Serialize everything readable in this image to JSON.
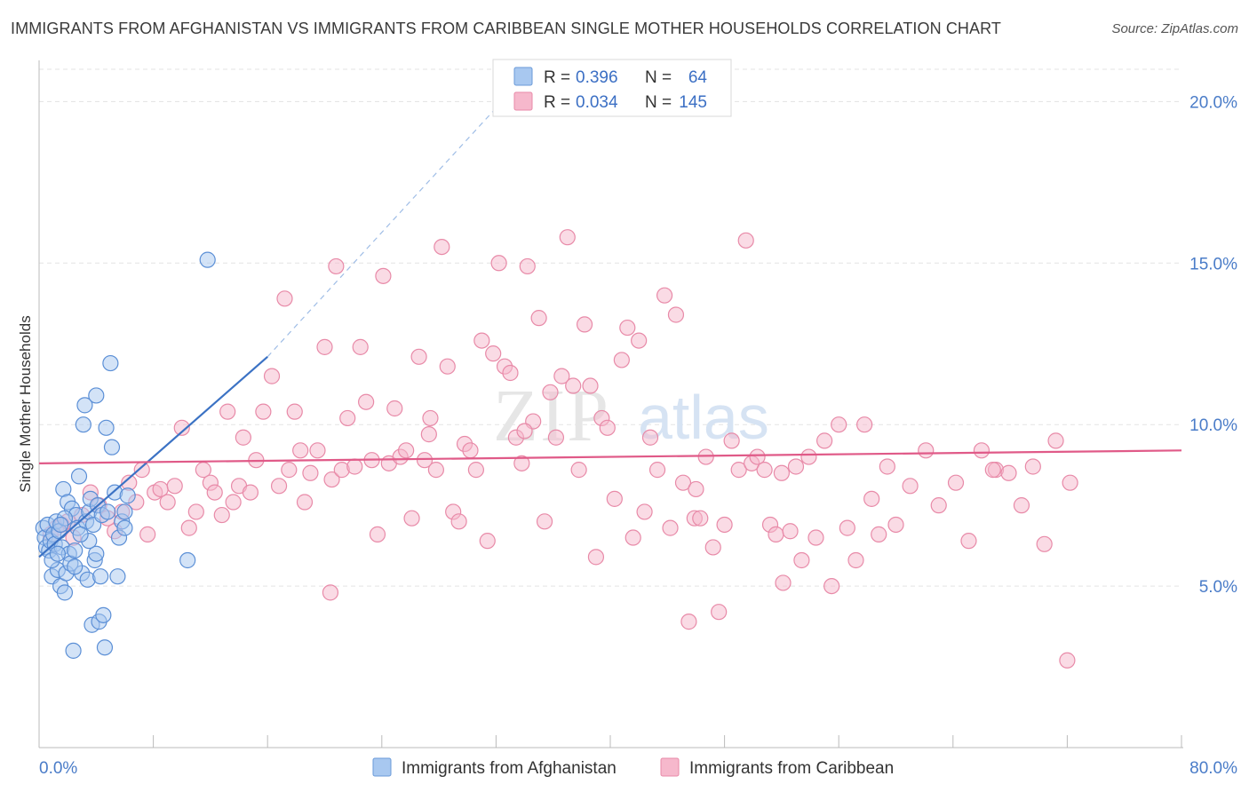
{
  "title": "IMMIGRANTS FROM AFGHANISTAN VS IMMIGRANTS FROM CARIBBEAN SINGLE MOTHER HOUSEHOLDS CORRELATION CHART",
  "source": "Source: ZipAtlas.com",
  "watermark": "ZIPatlas",
  "chart_data": {
    "type": "scatter",
    "ylabel": "Single Mother Households",
    "xlim": [
      0,
      80
    ],
    "ylim": [
      0,
      21
    ],
    "x_tick_labels": [
      {
        "value": 0,
        "label": "0.0%"
      },
      {
        "value": 80,
        "label": "80.0%"
      }
    ],
    "y_tick_labels": [
      {
        "value": 5,
        "label": "5.0%"
      },
      {
        "value": 10,
        "label": "10.0%"
      },
      {
        "value": 15,
        "label": "15.0%"
      },
      {
        "value": 20,
        "label": "20.0%"
      }
    ],
    "legend": [
      {
        "r_label": "R =",
        "r_value": "0.396",
        "n_label": "N =",
        "n_value": "64",
        "color": "#a8c8f0",
        "stroke": "#6a9ad8"
      },
      {
        "r_label": "R =",
        "r_value": "0.034",
        "n_label": "N =",
        "n_value": "145",
        "color": "#f6b8cc",
        "stroke": "#e88aa8"
      }
    ],
    "series": [
      {
        "name": "Immigrants from Afghanistan",
        "color": "#a8c8f0",
        "stroke": "#5b8fd6",
        "trend": {
          "x0": 0,
          "y0": 5.9,
          "x1": 16,
          "y1": 12.1,
          "dash_to_x": 32,
          "dash_to_y": 19.8,
          "color": "#3b72c4"
        },
        "points": [
          [
            0.3,
            6.8
          ],
          [
            0.4,
            6.5
          ],
          [
            0.5,
            6.2
          ],
          [
            0.6,
            6.9
          ],
          [
            0.7,
            6.1
          ],
          [
            0.8,
            6.4
          ],
          [
            0.9,
            5.3
          ],
          [
            1.0,
            6.6
          ],
          [
            1.1,
            6.3
          ],
          [
            1.2,
            7.0
          ],
          [
            1.3,
            5.5
          ],
          [
            1.4,
            6.7
          ],
          [
            1.5,
            5.0
          ],
          [
            1.6,
            6.2
          ],
          [
            1.7,
            8.0
          ],
          [
            1.8,
            4.8
          ],
          [
            1.9,
            5.4
          ],
          [
            2.0,
            7.6
          ],
          [
            2.1,
            6.0
          ],
          [
            2.2,
            5.7
          ],
          [
            2.3,
            7.4
          ],
          [
            2.4,
            3.0
          ],
          [
            2.5,
            6.1
          ],
          [
            2.6,
            7.2
          ],
          [
            2.7,
            6.8
          ],
          [
            2.8,
            8.4
          ],
          [
            3.0,
            5.4
          ],
          [
            3.1,
            10.0
          ],
          [
            3.2,
            10.6
          ],
          [
            3.3,
            7.0
          ],
          [
            3.4,
            5.2
          ],
          [
            3.5,
            7.3
          ],
          [
            3.6,
            7.7
          ],
          [
            3.7,
            3.8
          ],
          [
            3.8,
            6.9
          ],
          [
            3.9,
            5.8
          ],
          [
            4.0,
            10.9
          ],
          [
            4.1,
            7.5
          ],
          [
            4.2,
            3.9
          ],
          [
            4.3,
            5.3
          ],
          [
            4.4,
            7.2
          ],
          [
            4.5,
            4.1
          ],
          [
            4.6,
            3.1
          ],
          [
            4.7,
            9.9
          ],
          [
            4.8,
            7.3
          ],
          [
            5.0,
            11.9
          ],
          [
            5.1,
            9.3
          ],
          [
            5.3,
            7.9
          ],
          [
            5.5,
            5.3
          ],
          [
            5.6,
            6.5
          ],
          [
            5.8,
            7.0
          ],
          [
            6.0,
            7.3
          ],
          [
            6.2,
            7.8
          ],
          [
            6.0,
            6.8
          ],
          [
            4.0,
            6.0
          ],
          [
            3.5,
            6.4
          ],
          [
            2.9,
            6.6
          ],
          [
            2.5,
            5.6
          ],
          [
            1.8,
            7.1
          ],
          [
            1.5,
            6.9
          ],
          [
            10.4,
            5.8
          ],
          [
            11.8,
            15.1
          ],
          [
            0.9,
            5.8
          ],
          [
            1.3,
            6.0
          ]
        ]
      },
      {
        "name": "Immigrants from Caribbean",
        "color": "#f6b8cc",
        "stroke": "#e88aa8",
        "trend": {
          "x0": 0,
          "y0": 8.8,
          "x1": 80,
          "y1": 9.2,
          "color": "#e05a88"
        },
        "points": [
          [
            0.8,
            6.6
          ],
          [
            1.2,
            6.8
          ],
          [
            1.6,
            6.9
          ],
          [
            2.0,
            7.0
          ],
          [
            2.4,
            6.5
          ],
          [
            3.0,
            7.2
          ],
          [
            3.6,
            7.9
          ],
          [
            4.2,
            7.5
          ],
          [
            4.8,
            7.1
          ],
          [
            5.3,
            6.7
          ],
          [
            5.8,
            7.3
          ],
          [
            6.3,
            8.2
          ],
          [
            6.8,
            7.6
          ],
          [
            7.2,
            8.6
          ],
          [
            7.6,
            6.6
          ],
          [
            8.1,
            7.9
          ],
          [
            8.5,
            8.0
          ],
          [
            9.0,
            7.6
          ],
          [
            9.5,
            8.1
          ],
          [
            10.0,
            9.9
          ],
          [
            10.5,
            6.8
          ],
          [
            11.0,
            7.3
          ],
          [
            11.5,
            8.6
          ],
          [
            12.0,
            8.2
          ],
          [
            12.3,
            7.9
          ],
          [
            12.8,
            7.2
          ],
          [
            13.2,
            10.4
          ],
          [
            13.6,
            7.6
          ],
          [
            14.0,
            8.1
          ],
          [
            14.3,
            9.6
          ],
          [
            14.8,
            7.9
          ],
          [
            15.2,
            8.9
          ],
          [
            15.7,
            10.4
          ],
          [
            16.3,
            11.5
          ],
          [
            16.8,
            8.1
          ],
          [
            17.2,
            13.9
          ],
          [
            17.5,
            8.6
          ],
          [
            17.9,
            10.4
          ],
          [
            18.3,
            9.2
          ],
          [
            18.6,
            7.6
          ],
          [
            19.0,
            8.5
          ],
          [
            19.5,
            9.2
          ],
          [
            20.0,
            12.4
          ],
          [
            20.5,
            8.3
          ],
          [
            20.8,
            14.9
          ],
          [
            21.2,
            8.6
          ],
          [
            21.6,
            10.2
          ],
          [
            22.1,
            8.7
          ],
          [
            22.5,
            12.4
          ],
          [
            22.9,
            10.7
          ],
          [
            23.3,
            8.9
          ],
          [
            23.7,
            6.6
          ],
          [
            24.1,
            14.6
          ],
          [
            24.5,
            8.8
          ],
          [
            24.9,
            10.5
          ],
          [
            25.3,
            9.0
          ],
          [
            25.7,
            9.2
          ],
          [
            26.1,
            7.1
          ],
          [
            26.6,
            12.1
          ],
          [
            27.0,
            8.9
          ],
          [
            27.4,
            10.2
          ],
          [
            27.8,
            8.6
          ],
          [
            28.2,
            15.5
          ],
          [
            28.6,
            11.8
          ],
          [
            29.0,
            7.3
          ],
          [
            29.4,
            7.0
          ],
          [
            29.8,
            9.4
          ],
          [
            30.2,
            9.2
          ],
          [
            30.6,
            8.6
          ],
          [
            31.0,
            12.6
          ],
          [
            31.4,
            6.4
          ],
          [
            31.8,
            12.2
          ],
          [
            32.2,
            15.0
          ],
          [
            32.6,
            11.8
          ],
          [
            33.0,
            11.6
          ],
          [
            33.4,
            9.6
          ],
          [
            33.8,
            8.8
          ],
          [
            34.2,
            14.9
          ],
          [
            34.6,
            10.1
          ],
          [
            35.0,
            13.3
          ],
          [
            35.4,
            7.0
          ],
          [
            35.8,
            11.0
          ],
          [
            36.2,
            9.6
          ],
          [
            36.6,
            11.5
          ],
          [
            37.0,
            15.8
          ],
          [
            37.4,
            11.2
          ],
          [
            37.8,
            8.6
          ],
          [
            38.2,
            13.1
          ],
          [
            38.6,
            11.2
          ],
          [
            39.0,
            5.9
          ],
          [
            39.4,
            10.2
          ],
          [
            39.8,
            9.9
          ],
          [
            40.3,
            7.7
          ],
          [
            40.8,
            12.0
          ],
          [
            41.2,
            13.0
          ],
          [
            41.6,
            6.5
          ],
          [
            42.0,
            12.6
          ],
          [
            42.4,
            7.3
          ],
          [
            42.8,
            9.6
          ],
          [
            43.3,
            8.6
          ],
          [
            43.8,
            14.0
          ],
          [
            44.2,
            6.8
          ],
          [
            44.6,
            13.4
          ],
          [
            45.1,
            8.2
          ],
          [
            45.5,
            3.9
          ],
          [
            45.9,
            7.1
          ],
          [
            46.3,
            7.1
          ],
          [
            46.7,
            9.0
          ],
          [
            47.2,
            6.2
          ],
          [
            47.6,
            4.2
          ],
          [
            48.0,
            6.9
          ],
          [
            48.5,
            9.5
          ],
          [
            49.0,
            8.6
          ],
          [
            49.5,
            15.7
          ],
          [
            49.9,
            8.8
          ],
          [
            50.3,
            9.0
          ],
          [
            50.8,
            8.6
          ],
          [
            51.2,
            6.9
          ],
          [
            51.6,
            6.6
          ],
          [
            52.1,
            5.1
          ],
          [
            52.6,
            6.7
          ],
          [
            53.0,
            8.7
          ],
          [
            53.4,
            5.8
          ],
          [
            53.9,
            9.0
          ],
          [
            54.4,
            6.5
          ],
          [
            55.0,
            9.5
          ],
          [
            55.5,
            5.0
          ],
          [
            56.0,
            10.0
          ],
          [
            56.6,
            6.8
          ],
          [
            57.2,
            5.8
          ],
          [
            57.8,
            10.0
          ],
          [
            58.3,
            7.7
          ],
          [
            58.8,
            6.6
          ],
          [
            59.4,
            8.7
          ],
          [
            60.0,
            6.9
          ],
          [
            61.0,
            8.1
          ],
          [
            62.1,
            9.2
          ],
          [
            63.0,
            7.5
          ],
          [
            64.2,
            8.2
          ],
          [
            65.1,
            6.4
          ],
          [
            66.0,
            9.2
          ],
          [
            67.0,
            8.6
          ],
          [
            67.9,
            8.5
          ],
          [
            68.8,
            7.5
          ],
          [
            69.6,
            8.7
          ],
          [
            70.4,
            6.3
          ],
          [
            71.2,
            9.5
          ],
          [
            72.2,
            8.2
          ],
          [
            72.0,
            2.7
          ],
          [
            66.8,
            8.6
          ],
          [
            20.4,
            4.8
          ],
          [
            27.3,
            9.7
          ],
          [
            34.0,
            9.8
          ],
          [
            46.0,
            8.0
          ],
          [
            52.0,
            8.5
          ]
        ]
      }
    ]
  },
  "bottom_legend": [
    {
      "label": "Immigrants from Afghanistan",
      "color": "#a8c8f0",
      "stroke": "#6a9ad8"
    },
    {
      "label": "Immigrants from Caribbean",
      "color": "#f6b8cc",
      "stroke": "#e88aa8"
    }
  ]
}
